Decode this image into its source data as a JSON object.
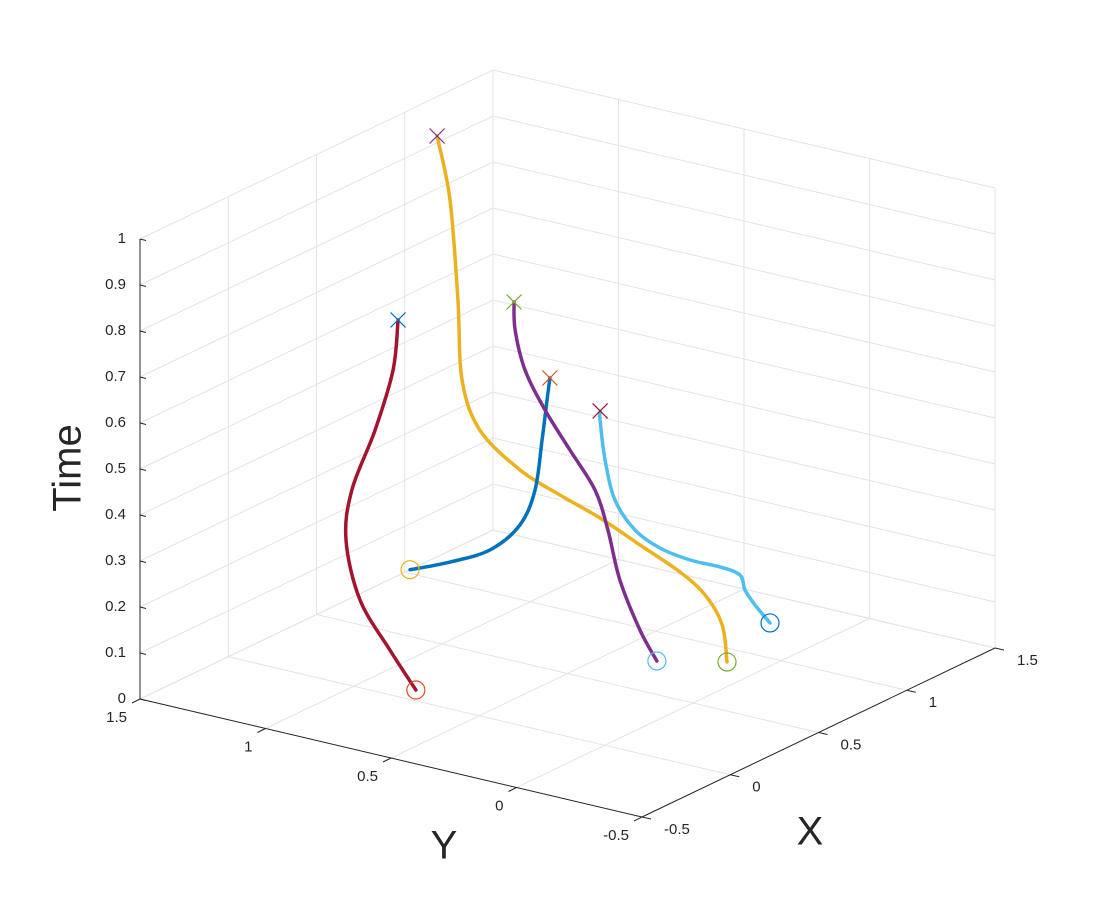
{
  "chart_data": {
    "type": "line3d",
    "xlabel": "X",
    "ylabel": "Y",
    "zlabel": "Time",
    "xlim": [
      -0.5,
      1.5
    ],
    "xticks": [
      -0.5,
      0,
      0.5,
      1,
      1.5
    ],
    "ylim": [
      -0.5,
      1.5
    ],
    "yticks": [
      -0.5,
      0,
      0.5,
      1,
      1.5
    ],
    "zlim": [
      0,
      1
    ],
    "zticks": [
      0,
      0.1,
      0.2,
      0.3,
      0.4,
      0.5,
      0.6,
      0.7,
      0.8,
      0.9,
      1
    ],
    "grid": true,
    "series": [
      {
        "color": "#a2142f",
        "start_color": "#d95319",
        "end_color": "#0072bd",
        "x": [
          0.086,
          -0.01,
          -0.034,
          -0.132,
          -0.089,
          -0.044,
          0.028,
          0.069
        ],
        "y": [
          0.813,
          0.849,
          0.951,
          0.938,
          0.945,
          0.884,
          0.863,
          0.872
        ],
        "z": [
          0,
          0.1,
          0.2,
          0.35,
          0.45,
          0.58,
          0.7,
          0.8
        ]
      },
      {
        "color": "#edb120",
        "start_color": "#77ac30",
        "end_color": "#7e2f8e",
        "x": [
          0.889,
          0.991,
          1.015,
          0.968,
          0.925,
          0.882,
          0.807,
          0.749,
          0.626,
          0.625,
          0.704,
          0.753,
          0.872
        ],
        "y": [
          0.138,
          0.229,
          0.314,
          0.381,
          0.51,
          0.639,
          0.746,
          0.864,
          0.938,
          1.008,
          1.08,
          1.146,
          1.281
        ],
        "z": [
          0,
          0.05,
          0.1,
          0.15,
          0.2,
          0.25,
          0.3,
          0.35,
          0.45,
          0.55,
          0.7,
          0.9,
          1.0
        ]
      },
      {
        "color": "#0072bd",
        "start_color": "#edb120",
        "end_color": "#d95319",
        "x": [
          1.03,
          1.056,
          1.08,
          1.042,
          0.983,
          0.845,
          0.734,
          0.622
        ],
        "y": [
          1.5,
          1.359,
          1.217,
          1.071,
          0.969,
          0.844,
          0.746,
          0.656
        ],
        "z": [
          0,
          0.03,
          0.07,
          0.15,
          0.25,
          0.4,
          0.52,
          0.6
        ]
      },
      {
        "color": "#7e2f8e",
        "start_color": "#4dbeee",
        "end_color": "#77ac30",
        "x": [
          0.766,
          0.798,
          0.865,
          0.911,
          0.912,
          0.818,
          0.724,
          0.639,
          0.573,
          0.574
        ],
        "y": [
          0.331,
          0.421,
          0.548,
          0.628,
          0.68,
          0.714,
          0.747,
          0.767,
          0.76,
          0.765
        ],
        "z": [
          0,
          0.05,
          0.13,
          0.22,
          0.3,
          0.4,
          0.5,
          0.6,
          0.7,
          0.76
        ]
      },
      {
        "color": "#4dbeee",
        "start_color": "#0072bd",
        "end_color": "#a2142f",
        "x": [
          1.279,
          1.284,
          1.311,
          1.348,
          1.265,
          1.155,
          1.048,
          0.962,
          0.87,
          0.804,
          0.747,
          0.746
        ],
        "y": [
          0.241,
          0.304,
          0.363,
          0.409,
          0.43,
          0.472,
          0.517,
          0.556,
          0.571,
          0.564,
          0.544,
          0.543
        ],
        "z": [
          0,
          0.03,
          0.05,
          0.07,
          0.1,
          0.13,
          0.17,
          0.22,
          0.3,
          0.4,
          0.5,
          0.52
        ]
      }
    ]
  }
}
